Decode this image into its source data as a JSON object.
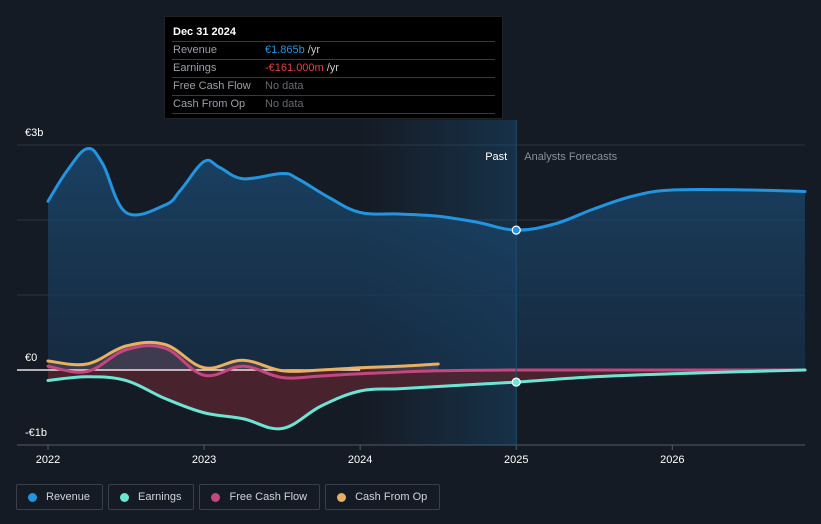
{
  "tooltip": {
    "date": "Dec 31 2024",
    "rows": [
      {
        "label": "Revenue",
        "value": "€1.865b",
        "unit": "/yr",
        "color": "#2394df"
      },
      {
        "label": "Earnings",
        "value": "-€161.000m",
        "unit": "/yr",
        "color": "#e64141"
      },
      {
        "label": "Free Cash Flow",
        "value": "No data",
        "unit": "",
        "color": "#666b70"
      },
      {
        "label": "Cash From Op",
        "value": "No data",
        "unit": "",
        "color": "#666b70"
      }
    ]
  },
  "legend": [
    {
      "label": "Revenue",
      "color": "#2394df"
    },
    {
      "label": "Earnings",
      "color": "#6ce5d5"
    },
    {
      "label": "Free Cash Flow",
      "color": "#c5477f"
    },
    {
      "label": "Cash From Op",
      "color": "#e8b060"
    }
  ],
  "chart_data": {
    "type": "line",
    "title": "",
    "xlabel": "",
    "ylabel": "",
    "x_ticks": [
      "2022",
      "2023",
      "2024",
      "2025",
      "2026"
    ],
    "y_ticks": [
      "€3b",
      "€0",
      "-€1b"
    ],
    "ylim": [
      -1.0,
      3.0
    ],
    "xlim": [
      2022.0,
      2026.85
    ],
    "period_labels": {
      "past": "Past",
      "forecast": "Analysts Forecasts"
    },
    "divider_x": 2025.0,
    "grid": true,
    "legend_position": "bottom-left",
    "series": [
      {
        "name": "Revenue",
        "color": "#2394df",
        "x": [
          2022.0,
          2022.12,
          2022.25,
          2022.35,
          2022.5,
          2022.75,
          2022.85,
          2023.0,
          2023.1,
          2023.25,
          2023.5,
          2023.6,
          2023.8,
          2024.0,
          2024.25,
          2024.5,
          2024.75,
          2025.0,
          2025.25,
          2025.5,
          2025.75,
          2026.0,
          2026.5,
          2026.85
        ],
        "y": [
          2.25,
          2.65,
          2.95,
          2.75,
          2.1,
          2.2,
          2.4,
          2.78,
          2.7,
          2.55,
          2.62,
          2.55,
          2.3,
          2.1,
          2.08,
          2.05,
          1.97,
          1.865,
          1.95,
          2.15,
          2.32,
          2.4,
          2.4,
          2.38
        ]
      },
      {
        "name": "Earnings",
        "color": "#6ce5d5",
        "x": [
          2022.0,
          2022.25,
          2022.5,
          2022.75,
          2023.0,
          2023.25,
          2023.5,
          2023.75,
          2024.0,
          2024.25,
          2024.5,
          2024.75,
          2025.0,
          2025.5,
          2026.0,
          2026.85
        ],
        "y": [
          -0.14,
          -0.09,
          -0.14,
          -0.38,
          -0.57,
          -0.65,
          -0.78,
          -0.48,
          -0.28,
          -0.25,
          -0.22,
          -0.19,
          -0.161,
          -0.09,
          -0.05,
          0.0
        ]
      },
      {
        "name": "Free Cash Flow",
        "color": "#c5477f",
        "x": [
          2022.0,
          2022.25,
          2022.5,
          2022.75,
          2023.0,
          2023.25,
          2023.5,
          2023.75,
          2024.0,
          2024.5,
          2025.0,
          2025.5,
          2026.0,
          2026.85
        ],
        "y": [
          0.05,
          -0.02,
          0.27,
          0.29,
          -0.07,
          0.05,
          -0.1,
          -0.08,
          -0.05,
          -0.01,
          0.0,
          0.0,
          0.0,
          0.0
        ]
      },
      {
        "name": "Cash From Op",
        "color": "#e8b060",
        "x": [
          2022.0,
          2022.25,
          2022.5,
          2022.75,
          2023.0,
          2023.25,
          2023.5,
          2023.75,
          2024.0,
          2024.25,
          2024.5
        ],
        "y": [
          0.12,
          0.08,
          0.32,
          0.34,
          0.03,
          0.13,
          -0.01,
          0.0,
          0.03,
          0.05,
          0.08
        ]
      }
    ]
  }
}
